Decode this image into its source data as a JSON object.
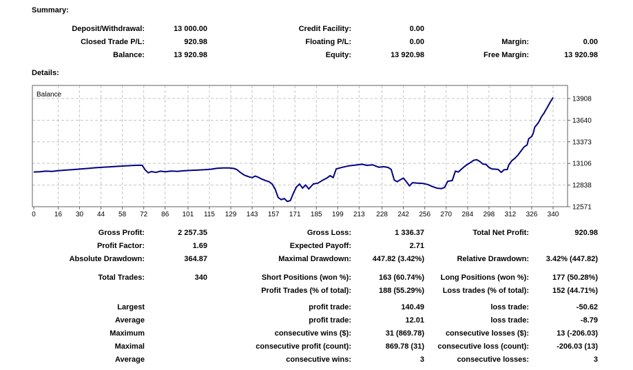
{
  "page": {
    "summary_header": "Summary:",
    "details_header": "Details:"
  },
  "colors": {
    "balance_line": "#000080",
    "grid": "#c4c4c4",
    "chart_border": "#5f5f5f",
    "text": "#000000",
    "background": "#ffffff"
  },
  "summary": {
    "rows": [
      [
        "Deposit/Withdrawal:",
        "13 000.00",
        "Credit Facility:",
        "0.00",
        "",
        ""
      ],
      [
        "Closed Trade P/L:",
        "920.98",
        "Floating P/L:",
        "0.00",
        "Margin:",
        "0.00"
      ],
      [
        "Balance:",
        "13 920.98",
        "Equity:",
        "13 920.98",
        "Free Margin:",
        "13 920.98"
      ]
    ]
  },
  "stats": {
    "groups": [
      {
        "rows": [
          [
            "Gross Profit:",
            "2 257.35",
            "Gross Loss:",
            "1 336.37",
            "Total Net Profit:",
            "920.98"
          ],
          [
            "Profit Factor:",
            "1.69",
            "Expected Payoff:",
            "2.71",
            "",
            ""
          ],
          [
            "Absolute Drawdown:",
            "364.87",
            "Maximal Drawdown:",
            "447.82 (3.42%)",
            "Relative Drawdown:",
            "3.42% (447.82)"
          ]
        ]
      },
      {
        "rows": [
          [
            "Total Trades:",
            "340",
            "Short Positions (won %):",
            "163 (60.74%)",
            "Long Positions (won %):",
            "177 (50.28%)"
          ],
          [
            "",
            "",
            "Profit Trades (% of total):",
            "188 (55.29%)",
            "Loss trades (% of total):",
            "152 (44.71%)"
          ]
        ]
      },
      {
        "rows": [
          [
            "Largest",
            "",
            "profit trade:",
            "140.49",
            "loss trade:",
            "-50.62"
          ],
          [
            "Average",
            "",
            "profit trade:",
            "12.01",
            "loss trade:",
            "-8.79"
          ],
          [
            "Maximum",
            "",
            "consecutive wins ($):",
            "31 (869.78)",
            "consecutive losses ($):",
            "13 (-206.03)"
          ],
          [
            "Maximal",
            "",
            "consecutive profit (count):",
            "869.78 (31)",
            "consecutive loss (count):",
            "-206.03 (13)"
          ],
          [
            "Average",
            "",
            "consecutive wins:",
            "3",
            "consecutive losses:",
            "3"
          ]
        ]
      }
    ]
  },
  "chart_data": {
    "type": "line",
    "title": "",
    "legend": "Balance",
    "legend_position": "top-left",
    "grid": true,
    "xlabel": "",
    "ylabel": "",
    "x_ticks": [
      0,
      16,
      30,
      44,
      58,
      72,
      86,
      101,
      115,
      129,
      143,
      157,
      171,
      185,
      199,
      213,
      228,
      242,
      256,
      270,
      284,
      298,
      312,
      326,
      340
    ],
    "y_ticks": [
      13908,
      13640,
      13373,
      13106,
      12838,
      12571
    ],
    "xlim": [
      0,
      340
    ],
    "ylim": [
      12571,
      14075
    ],
    "series": [
      {
        "name": "Balance",
        "color": "#000080",
        "points": [
          [
            0,
            13000
          ],
          [
            4,
            13004
          ],
          [
            8,
            13010
          ],
          [
            12,
            13008
          ],
          [
            16,
            13016
          ],
          [
            20,
            13022
          ],
          [
            25,
            13028
          ],
          [
            30,
            13036
          ],
          [
            35,
            13044
          ],
          [
            40,
            13052
          ],
          [
            45,
            13058
          ],
          [
            50,
            13064
          ],
          [
            55,
            13070
          ],
          [
            60,
            13076
          ],
          [
            64,
            13080
          ],
          [
            68,
            13083
          ],
          [
            71,
            13083
          ],
          [
            73,
            13025
          ],
          [
            75,
            12990
          ],
          [
            77,
            13005
          ],
          [
            80,
            12995
          ],
          [
            83,
            13010
          ],
          [
            86,
            13004
          ],
          [
            90,
            13012
          ],
          [
            94,
            13008
          ],
          [
            98,
            13015
          ],
          [
            103,
            13020
          ],
          [
            108,
            13024
          ],
          [
            112,
            13028
          ],
          [
            116,
            13034
          ],
          [
            120,
            13046
          ],
          [
            124,
            13050
          ],
          [
            128,
            13050
          ],
          [
            131,
            13044
          ],
          [
            133,
            13030
          ],
          [
            135,
            12998
          ],
          [
            138,
            12960
          ],
          [
            141,
            12940
          ],
          [
            143,
            12930
          ],
          [
            145,
            12950
          ],
          [
            147,
            12935
          ],
          [
            149,
            12915
          ],
          [
            152,
            12892
          ],
          [
            154,
            12880
          ],
          [
            156,
            12852
          ],
          [
            158,
            12790
          ],
          [
            160,
            12685
          ],
          [
            162,
            12658
          ],
          [
            164,
            12672
          ],
          [
            166,
            12636
          ],
          [
            168,
            12648
          ],
          [
            170,
            12740
          ],
          [
            172,
            12815
          ],
          [
            174,
            12852
          ],
          [
            176,
            12800
          ],
          [
            178,
            12840
          ],
          [
            180,
            12790
          ],
          [
            183,
            12852
          ],
          [
            186,
            12862
          ],
          [
            189,
            12896
          ],
          [
            192,
            12926
          ],
          [
            194,
            12955
          ],
          [
            196,
            12930
          ],
          [
            198,
            13038
          ],
          [
            202,
            13058
          ],
          [
            206,
            13075
          ],
          [
            211,
            13086
          ],
          [
            215,
            13096
          ],
          [
            218,
            13082
          ],
          [
            222,
            13088
          ],
          [
            226,
            13058
          ],
          [
            229,
            13066
          ],
          [
            232,
            13056
          ],
          [
            234,
            13032
          ],
          [
            236,
            12900
          ],
          [
            238,
            12880
          ],
          [
            240,
            12904
          ],
          [
            242,
            12924
          ],
          [
            244,
            12878
          ],
          [
            246,
            12828
          ],
          [
            248,
            12868
          ],
          [
            251,
            12862
          ],
          [
            255,
            12858
          ],
          [
            258,
            12845
          ],
          [
            261,
            12820
          ],
          [
            264,
            12800
          ],
          [
            267,
            12795
          ],
          [
            269,
            12810
          ],
          [
            271,
            12885
          ],
          [
            274,
            12895
          ],
          [
            276,
            13010
          ],
          [
            278,
            13000
          ],
          [
            280,
            13035
          ],
          [
            282,
            13068
          ],
          [
            284,
            13095
          ],
          [
            286,
            13118
          ],
          [
            288,
            13145
          ],
          [
            290,
            13152
          ],
          [
            292,
            13130
          ],
          [
            294,
            13098
          ],
          [
            296,
            13095
          ],
          [
            298,
            13056
          ],
          [
            300,
            13038
          ],
          [
            302,
            13035
          ],
          [
            304,
            13032
          ],
          [
            306,
            12995
          ],
          [
            308,
            13028
          ],
          [
            310,
            13030
          ],
          [
            311,
            13090
          ],
          [
            313,
            13140
          ],
          [
            315,
            13170
          ],
          [
            317,
            13210
          ],
          [
            319,
            13260
          ],
          [
            321,
            13310
          ],
          [
            323,
            13335
          ],
          [
            324,
            13410
          ],
          [
            326,
            13440
          ],
          [
            327,
            13480
          ],
          [
            328,
            13555
          ],
          [
            330,
            13600
          ],
          [
            331,
            13630
          ],
          [
            332,
            13670
          ],
          [
            333,
            13700
          ],
          [
            334,
            13725
          ],
          [
            335,
            13760
          ],
          [
            336,
            13790
          ],
          [
            337,
            13825
          ],
          [
            338,
            13860
          ],
          [
            339,
            13890
          ],
          [
            340,
            13921
          ]
        ]
      }
    ]
  }
}
